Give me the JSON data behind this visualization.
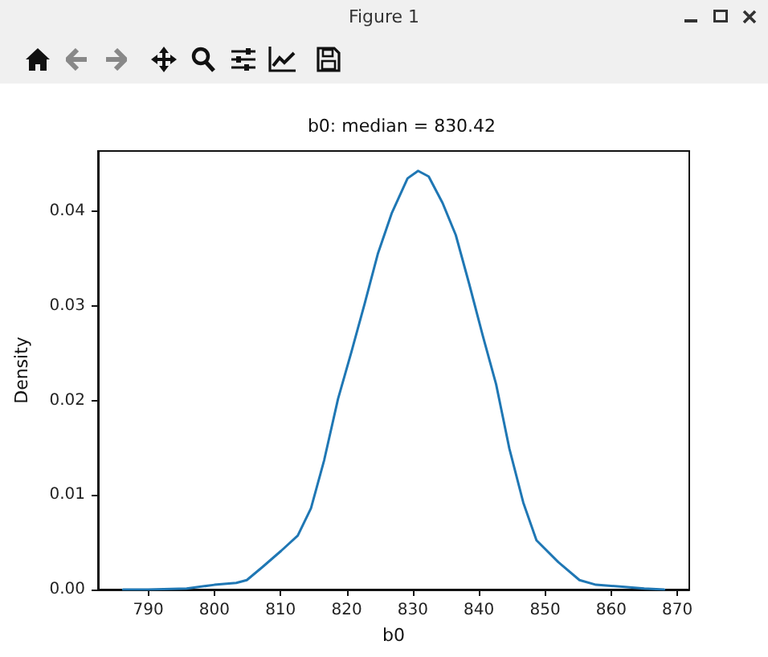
{
  "chart_data": {
    "type": "line",
    "title": "b0: median = 830.42",
    "xlabel": "b0",
    "ylabel": "Density",
    "annotations": [
      "Figure 1"
    ],
    "x": [
      786.2,
      790,
      795.8,
      800,
      803.3,
      804.9,
      807.3,
      810.1,
      812.6,
      814.6,
      816.6,
      818.7,
      820.7,
      822.7,
      824.7,
      826.8,
      829.2,
      830.8,
      832.4,
      834.5,
      836.5,
      838.5,
      840.6,
      842.6,
      844.6,
      846.7,
      848.7,
      852.0,
      855.2,
      857.7,
      861.7,
      865.0,
      868.0
    ],
    "series": [
      {
        "color": "#1f77b4",
        "values": [
          0,
          0,
          0.0001,
          0.0005,
          0.0007,
          0.001,
          0.0024,
          0.0041,
          0.0057,
          0.0086,
          0.0137,
          0.0202,
          0.0251,
          0.0302,
          0.0355,
          0.0398,
          0.0435,
          0.0443,
          0.0437,
          0.0409,
          0.0375,
          0.0324,
          0.0268,
          0.0217,
          0.0149,
          0.0092,
          0.0052,
          0.0029,
          0.001,
          0.0005,
          0.0003,
          0.0001,
          0
        ]
      }
    ],
    "xlim": [
      782.4,
      871.8
    ],
    "xticks": [
      790,
      800,
      810,
      820,
      830,
      840,
      850,
      860,
      870
    ],
    "ylim": [
      0,
      0.0464
    ],
    "yticks": [
      {
        "value": 0,
        "label": "0.00"
      },
      {
        "value": 0.01,
        "label": "0.01"
      },
      {
        "value": 0.02,
        "label": "0.02"
      },
      {
        "value": 0.03,
        "label": "0.03"
      },
      {
        "value": 0.04,
        "label": "0.04"
      }
    ],
    "grid": false,
    "marker": "none",
    "line_style": "solid"
  }
}
